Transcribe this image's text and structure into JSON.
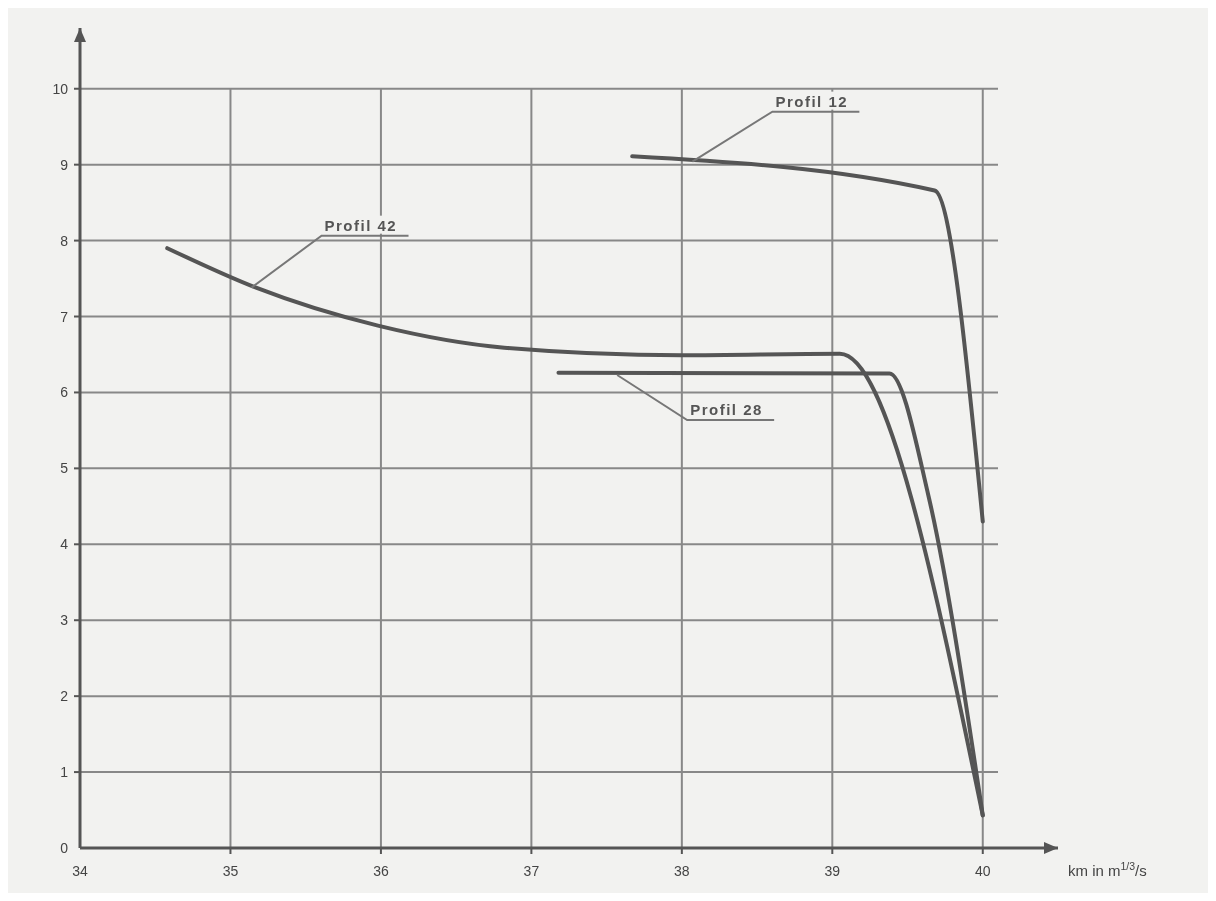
{
  "chart_data": {
    "type": "line",
    "xlabel": "km in m$^{1/3}$/s",
    "xlim": [
      34,
      40.5
    ],
    "ylim": [
      0,
      10.8
    ],
    "xticks": [
      34,
      35,
      36,
      37,
      38,
      39,
      40
    ],
    "yticks": [
      0,
      1,
      2,
      3,
      4,
      5,
      6,
      7,
      8,
      9,
      10
    ],
    "grid": true,
    "marker": "none",
    "line_style": "solid",
    "series": [
      {
        "x": [
          37.67,
          39.68,
          40
        ],
        "values": [
          9.11,
          8.66,
          4.3
        ],
        "color": "#555555"
      },
      {
        "x": [
          34.58,
          35.17,
          35.98,
          36.82,
          38.0,
          39.05,
          40
        ],
        "values": [
          7.9,
          7.38,
          6.88,
          6.59,
          6.49,
          6.51,
          0.43
        ],
        "color": "#555555"
      },
      {
        "x": [
          37.18,
          39.38,
          39.64,
          40
        ],
        "values": [
          6.26,
          6.25,
          4.63,
          0.43
        ],
        "color": "#555555"
      }
    ],
    "annotations": [
      {
        "text": "Profil 12",
        "x": 38.07,
        "y": 9.04
      },
      {
        "text": "Profil 42",
        "x": 35.14,
        "y": 7.38
      },
      {
        "text": "Profil 28",
        "x": 37.57,
        "y": 6.23
      }
    ]
  }
}
